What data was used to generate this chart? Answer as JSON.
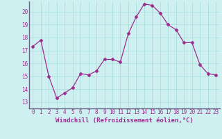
{
  "x": [
    0,
    1,
    2,
    3,
    4,
    5,
    6,
    7,
    8,
    9,
    10,
    11,
    12,
    13,
    14,
    15,
    16,
    17,
    18,
    19,
    20,
    21,
    22,
    23
  ],
  "y": [
    17.3,
    17.8,
    15.0,
    13.3,
    13.7,
    14.1,
    15.2,
    15.1,
    15.4,
    16.3,
    16.3,
    16.1,
    18.3,
    19.6,
    20.6,
    20.5,
    19.9,
    19.0,
    18.6,
    17.6,
    17.6,
    15.9,
    15.2,
    15.1
  ],
  "line_color": "#9b2d8e",
  "marker": "D",
  "marker_size": 2.5,
  "xlabel": "Windchill (Refroidissement éolien,°C)",
  "ylim": [
    12.5,
    20.8
  ],
  "xlim": [
    -0.5,
    23.5
  ],
  "yticks": [
    13,
    14,
    15,
    16,
    17,
    18,
    19,
    20
  ],
  "xticks": [
    0,
    1,
    2,
    3,
    4,
    5,
    6,
    7,
    8,
    9,
    10,
    11,
    12,
    13,
    14,
    15,
    16,
    17,
    18,
    19,
    20,
    21,
    22,
    23
  ],
  "bg_color": "#cff0f0",
  "grid_color": "#aadddd",
  "tick_color": "#9b2d8e",
  "label_color": "#9b2d8e",
  "font_size": 5.5,
  "xlabel_fontsize": 6.5,
  "spine_color": "#666688"
}
